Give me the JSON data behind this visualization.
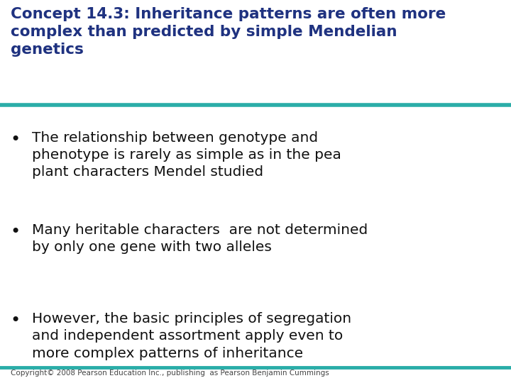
{
  "title_text": "Concept 14.3: Inheritance patterns are often more\ncomplex than predicted by simple Mendelian\ngenetics",
  "title_color": "#1F3280",
  "title_fontsize": 15.5,
  "separator_color": "#2AADA8",
  "separator_linewidth": 4.0,
  "bullet_color": "#111111",
  "bullet_fontsize": 14.5,
  "bullets": [
    "The relationship between genotype and\nphenotype is rarely as simple as in the pea\nplant characters Mendel studied",
    "Many heritable characters  are not determined\nby only one gene with two alleles",
    "However, the basic principles of segregation\nand independent assortment apply even to\nmore complex patterns of inheritance"
  ],
  "copyright_text": "Copyright© 2008 Pearson Education Inc., publishing  as Pearson Benjamin Cummings",
  "copyright_fontsize": 7.5,
  "copyright_color": "#444444",
  "background_color": "#FFFFFF"
}
